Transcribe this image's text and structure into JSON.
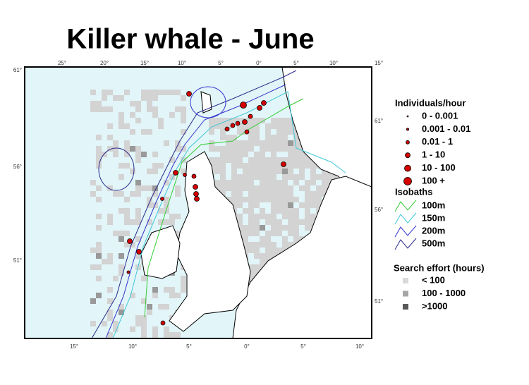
{
  "title": "Killer whale - June",
  "map": {
    "top_labels": [
      "25°",
      "20°",
      "15°",
      "10°",
      "5°",
      "0°",
      "5°",
      "10°",
      "15°"
    ],
    "left_labels": [
      "61°",
      "56°",
      "51°"
    ],
    "right_labels": [
      "61°",
      "56°",
      "51°"
    ],
    "bottom_labels": [
      "15°",
      "10°",
      "5°",
      "0°",
      "5°",
      "10°"
    ]
  },
  "legend": {
    "sightings": {
      "title": "Individuals/hour",
      "items": [
        "0 - 0.001",
        "0.001 - 0.01",
        "0.01 - 1",
        "1 - 10",
        "10 - 100",
        "100 +"
      ]
    },
    "isobaths": {
      "title": "Isobaths",
      "items": [
        "100m",
        "150m",
        "200m",
        "500m"
      ]
    },
    "effort": {
      "title": "Search effort (hours)",
      "items": [
        "< 100",
        "100 - 1000",
        ">1000"
      ]
    }
  }
}
